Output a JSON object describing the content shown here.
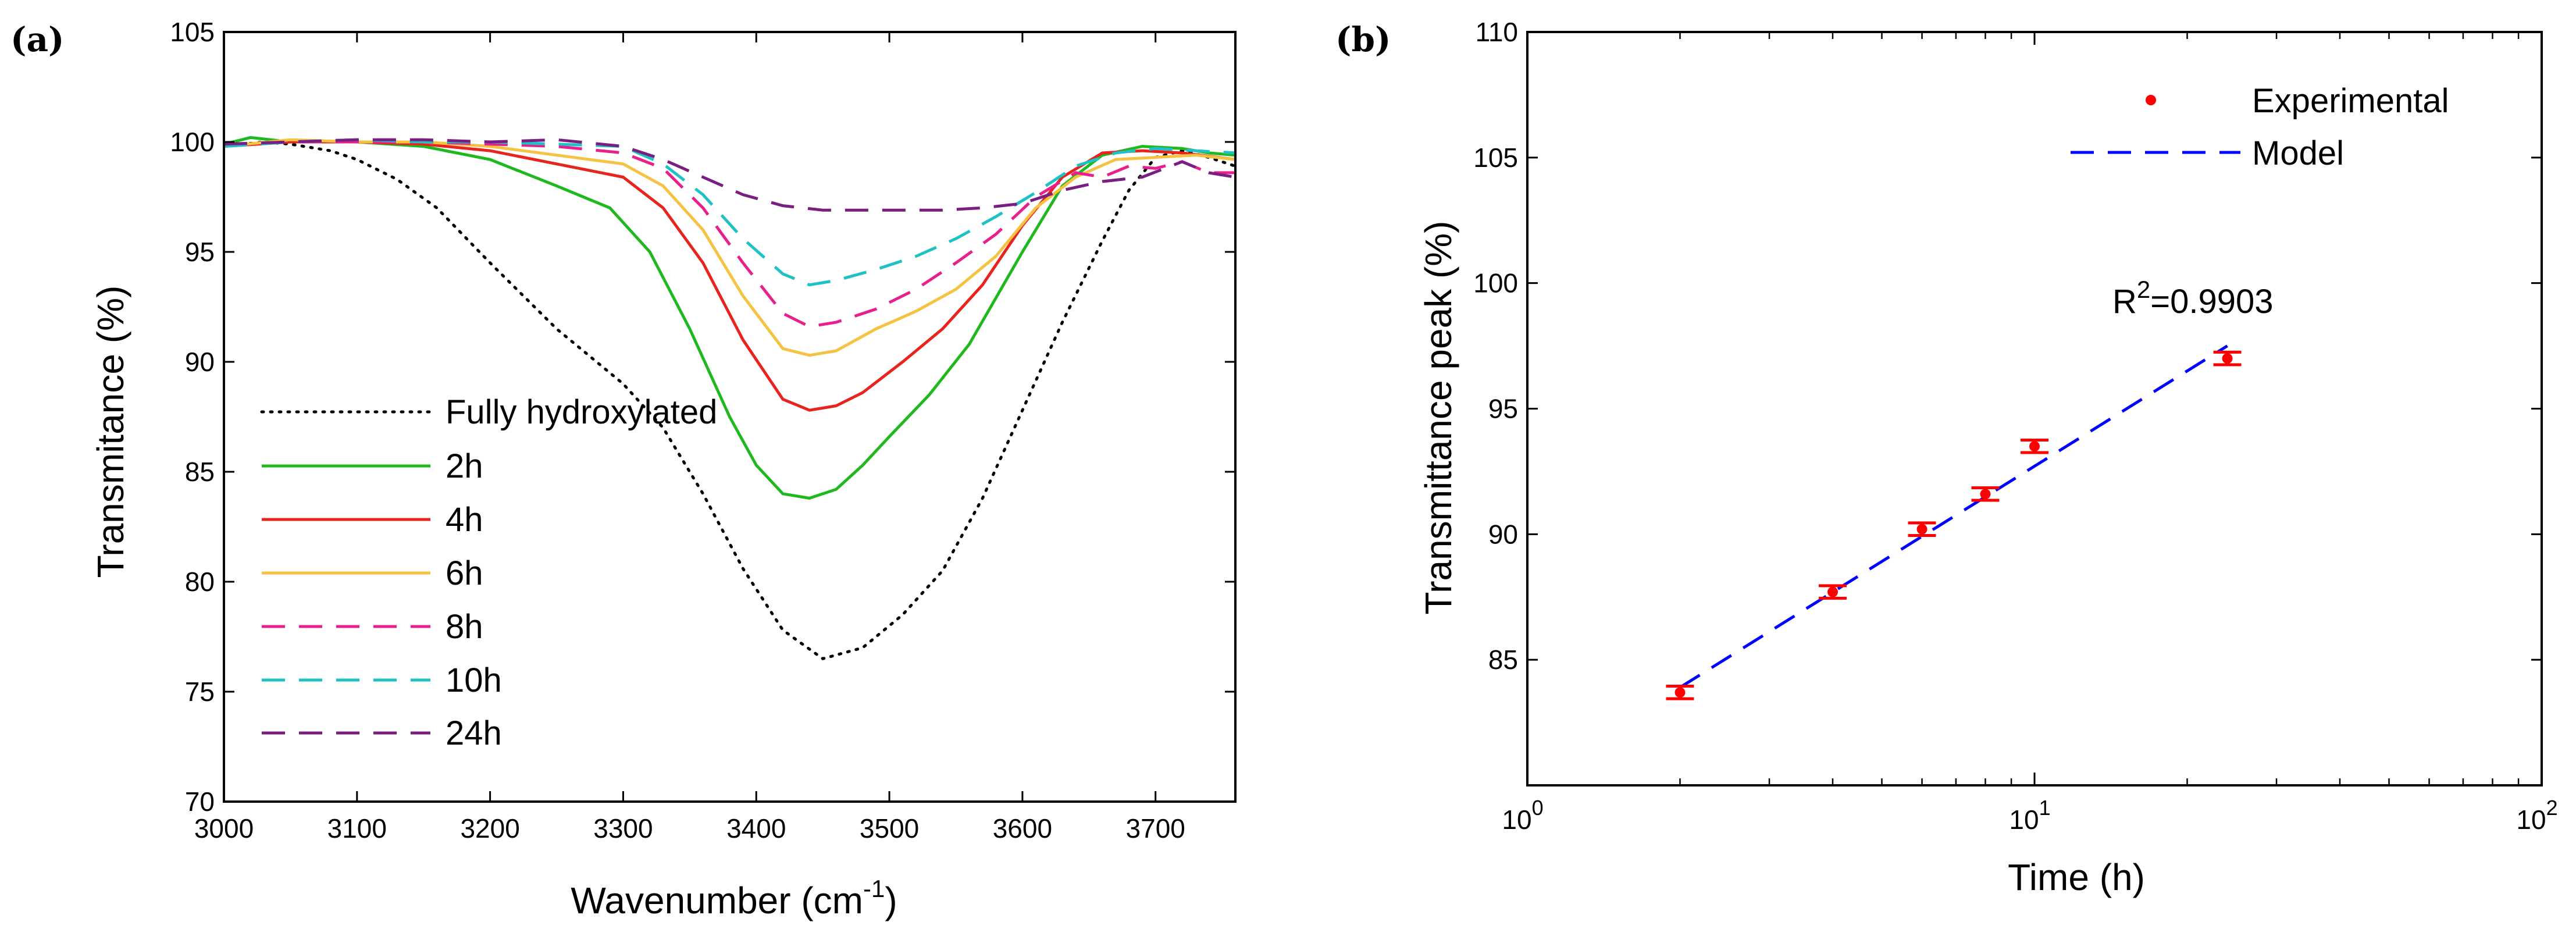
{
  "chart_data": [
    {
      "type": "line",
      "panel_label": "(a)",
      "xlabel": "Wavenumber (cm",
      "xlabel_sup": "-1",
      "xlabel_end": ")",
      "ylabel": "Transmitance (%)",
      "xlim": [
        3000,
        3760
      ],
      "ylim": [
        70,
        105
      ],
      "xticks": [
        "3000",
        "3100",
        "3200",
        "3300",
        "3400",
        "3500",
        "3600",
        "3700"
      ],
      "yticks": [
        "70",
        "75",
        "80",
        "85",
        "90",
        "95",
        "100",
        "105"
      ],
      "legend_position": "left-middle",
      "series": [
        {
          "name": "Fully hydroxylated",
          "color": "#000000",
          "dash": "dotted",
          "x": [
            3000,
            3030,
            3050,
            3080,
            3100,
            3130,
            3160,
            3200,
            3250,
            3300,
            3330,
            3360,
            3390,
            3420,
            3450,
            3480,
            3510,
            3540,
            3570,
            3600,
            3630,
            3660,
            3680,
            3700,
            3720,
            3740,
            3760
          ],
          "y": [
            99.8,
            100.0,
            99.9,
            99.6,
            99.2,
            98.3,
            97.0,
            94.5,
            91.5,
            89.0,
            87.0,
            84.0,
            80.6,
            77.8,
            76.5,
            77.0,
            78.5,
            80.5,
            83.8,
            87.8,
            91.8,
            95.5,
            97.8,
            99.3,
            99.6,
            99.3,
            98.9
          ]
        },
        {
          "name": "2h",
          "color": "#1fb81f",
          "dash": "solid",
          "x": [
            3000,
            3020,
            3050,
            3100,
            3150,
            3200,
            3250,
            3290,
            3320,
            3350,
            3380,
            3400,
            3420,
            3440,
            3460,
            3480,
            3500,
            3530,
            3560,
            3600,
            3630,
            3660,
            3690,
            3720,
            3740,
            3760
          ],
          "y": [
            99.9,
            100.2,
            100.0,
            100.0,
            99.8,
            99.2,
            98.0,
            97.0,
            95.0,
            91.5,
            87.5,
            85.3,
            84.0,
            83.8,
            84.2,
            85.3,
            86.6,
            88.5,
            90.8,
            95.0,
            98.0,
            99.4,
            99.8,
            99.7,
            99.5,
            99.4
          ]
        },
        {
          "name": "4h",
          "color": "#e8241f",
          "dash": "solid",
          "x": [
            3000,
            3050,
            3100,
            3150,
            3200,
            3250,
            3300,
            3330,
            3360,
            3390,
            3420,
            3440,
            3460,
            3480,
            3510,
            3540,
            3570,
            3600,
            3630,
            3660,
            3690,
            3720,
            3760
          ],
          "y": [
            99.8,
            100.0,
            100.0,
            99.9,
            99.6,
            99.0,
            98.4,
            97.0,
            94.5,
            91.0,
            88.3,
            87.8,
            88.0,
            88.6,
            90.0,
            91.5,
            93.5,
            96.2,
            98.4,
            99.5,
            99.6,
            99.5,
            99.2
          ]
        },
        {
          "name": "6h",
          "color": "#f5c242",
          "dash": "solid",
          "x": [
            3000,
            3050,
            3100,
            3150,
            3200,
            3250,
            3300,
            3330,
            3360,
            3390,
            3420,
            3440,
            3460,
            3490,
            3520,
            3550,
            3580,
            3610,
            3640,
            3670,
            3700,
            3730,
            3760
          ],
          "y": [
            99.8,
            100.1,
            100.0,
            100.0,
            99.8,
            99.4,
            99.0,
            98.0,
            96.0,
            93.0,
            90.6,
            90.3,
            90.5,
            91.5,
            92.3,
            93.3,
            94.8,
            97.0,
            98.4,
            99.2,
            99.3,
            99.4,
            99.2
          ]
        },
        {
          "name": "8h",
          "color": "#e8208c",
          "dash": "dashed",
          "x": [
            3000,
            3050,
            3100,
            3150,
            3200,
            3250,
            3300,
            3330,
            3360,
            3390,
            3420,
            3440,
            3460,
            3490,
            3520,
            3550,
            3580,
            3610,
            3640,
            3660,
            3680,
            3700,
            3720,
            3740,
            3760
          ],
          "y": [
            99.9,
            100.0,
            100.0,
            100.0,
            99.9,
            99.8,
            99.5,
            98.8,
            97.0,
            94.5,
            92.2,
            91.6,
            91.8,
            92.4,
            93.3,
            94.5,
            95.8,
            97.5,
            98.6,
            98.4,
            98.9,
            98.8,
            99.1,
            98.6,
            98.6
          ]
        },
        {
          "name": "10h",
          "color": "#1fc2c2",
          "dash": "dashed",
          "x": [
            3000,
            3050,
            3100,
            3150,
            3200,
            3250,
            3300,
            3330,
            3360,
            3390,
            3420,
            3440,
            3460,
            3490,
            3520,
            3550,
            3580,
            3610,
            3640,
            3670,
            3700,
            3730,
            3760
          ],
          "y": [
            99.8,
            100.0,
            100.1,
            100.0,
            100.0,
            99.9,
            99.8,
            99.0,
            97.6,
            95.6,
            94.0,
            93.5,
            93.7,
            94.2,
            94.8,
            95.6,
            96.6,
            97.7,
            98.9,
            99.5,
            99.7,
            99.6,
            99.5
          ]
        },
        {
          "name": "24h",
          "color": "#7a1e82",
          "dash": "dashed",
          "x": [
            3000,
            3050,
            3100,
            3150,
            3200,
            3250,
            3300,
            3330,
            3360,
            3390,
            3420,
            3450,
            3480,
            3510,
            3540,
            3570,
            3600,
            3630,
            3660,
            3690,
            3720,
            3740,
            3760
          ],
          "y": [
            99.9,
            100.0,
            100.1,
            100.1,
            100.0,
            100.1,
            99.8,
            99.2,
            98.4,
            97.6,
            97.1,
            96.9,
            96.9,
            96.9,
            96.9,
            97.0,
            97.2,
            97.8,
            98.2,
            98.4,
            99.1,
            98.6,
            98.4
          ]
        }
      ]
    },
    {
      "type": "scatter",
      "panel_label": "(b)",
      "xscale": "log",
      "xlabel": "Time (h)",
      "ylabel": "Transmittance peak (%)",
      "xlim": [
        1,
        100
      ],
      "ylim": [
        80,
        110
      ],
      "xticks": [
        {
          "base": "10",
          "exp": "0",
          "value": 1
        },
        {
          "base": "10",
          "exp": "1",
          "value": 10
        },
        {
          "base": "10",
          "exp": "2",
          "value": 100
        }
      ],
      "yticks": [
        "85",
        "90",
        "95",
        "100",
        "105",
        "110"
      ],
      "legend_position": "top-right",
      "annotation": {
        "base": "R",
        "exp": "2",
        "rest": "=0.9903",
        "x": 3.3,
        "y": 99.5
      },
      "series": [
        {
          "name": "Experimental",
          "color": "#ff0000",
          "marker": "dot",
          "x": [
            2,
            4,
            6,
            8,
            10,
            24
          ],
          "y": [
            83.7,
            87.7,
            90.2,
            91.6,
            93.5,
            97.0
          ],
          "error": [
            0.25,
            0.25,
            0.25,
            0.25,
            0.25,
            0.25
          ]
        },
        {
          "name": "Model",
          "color": "#0000ff",
          "dash": "dashed",
          "x": [
            2,
            24
          ],
          "y": [
            83.9,
            97.5
          ]
        }
      ]
    }
  ]
}
